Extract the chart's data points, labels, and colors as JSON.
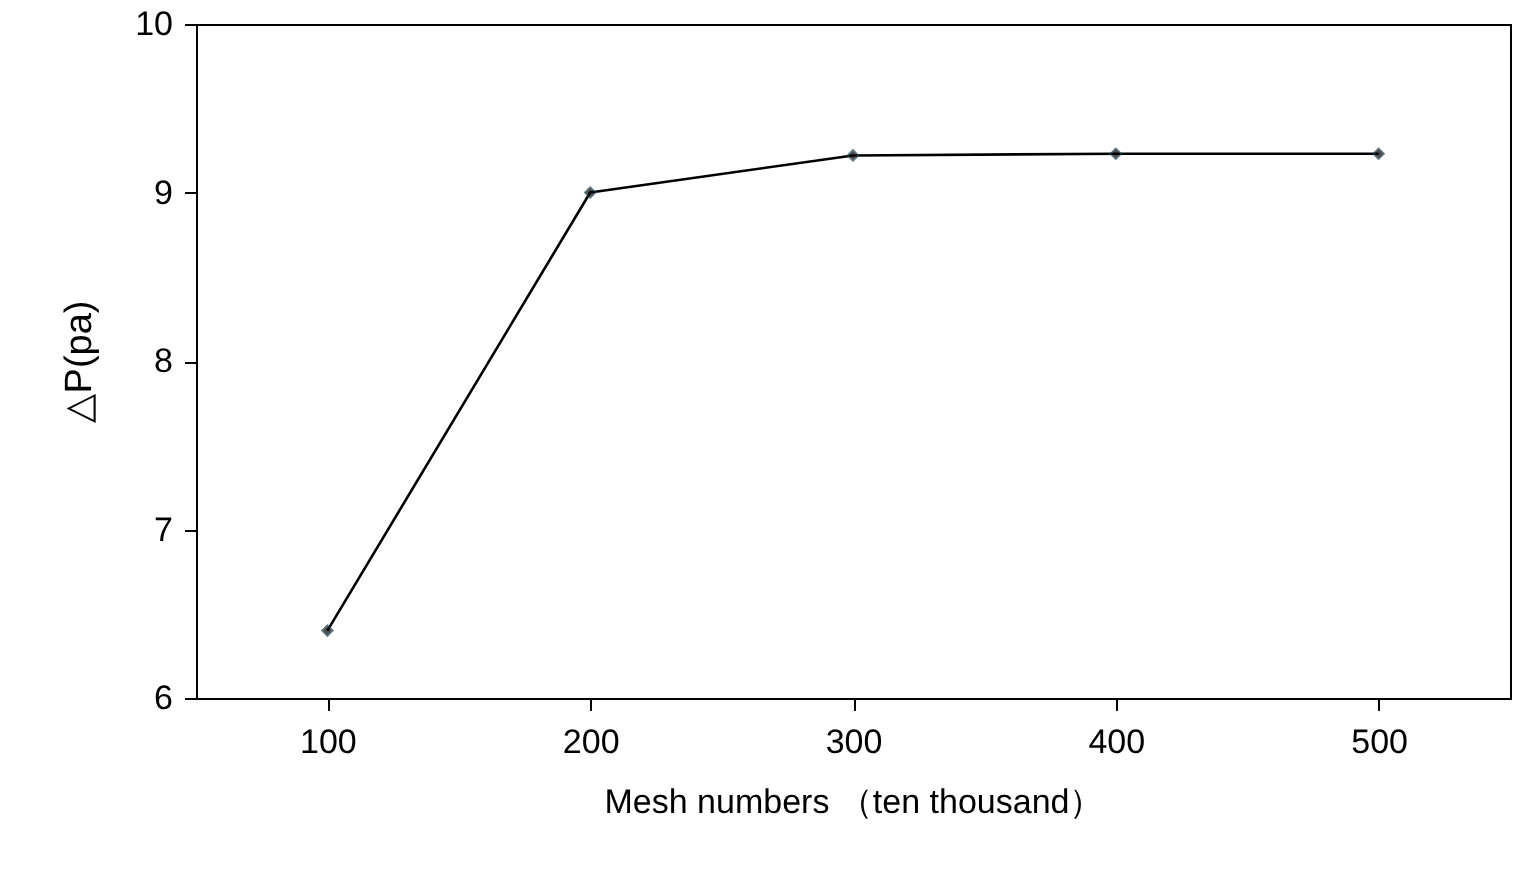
{
  "chart_data": {
    "type": "line",
    "xlabel": "Mesh numbers （ten thousand）",
    "ylabel": "△P(pa)",
    "categories": [
      "100",
      "200",
      "300",
      "400",
      "500"
    ],
    "series": [
      {
        "color": "#000000",
        "values": [
          6.4,
          9.0,
          9.22,
          9.23,
          9.23
        ]
      }
    ],
    "ylim": [
      6,
      10
    ],
    "yticks": [
      6,
      7,
      8,
      9,
      10
    ],
    "grid": false,
    "marker": "diamond",
    "line_style": "solid"
  }
}
